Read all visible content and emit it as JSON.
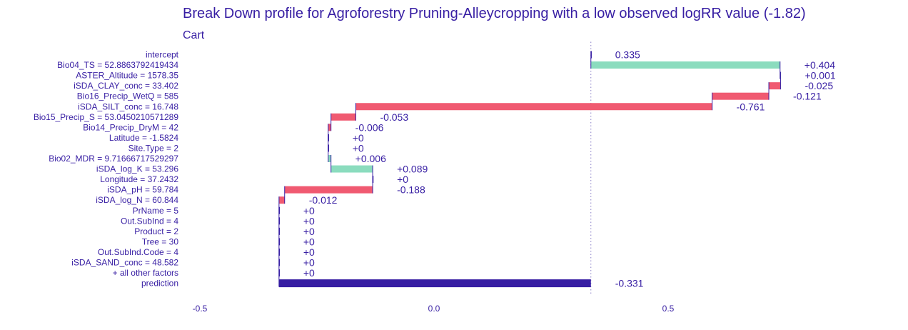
{
  "chart_data": {
    "type": "waterfall",
    "title": "Break Down profile for Agroforestry Pruning-Alleycropping with a low observed logRR value (-1.82)",
    "subtitle": "Cart",
    "xlim": [
      -0.5,
      0.85
    ],
    "xticks": [
      {
        "value": -0.5,
        "label": "-0.5"
      },
      {
        "value": 0.0,
        "label": "0.0"
      },
      {
        "value": 0.5,
        "label": "0.5"
      }
    ],
    "intercept_value": 0.335,
    "colors": {
      "positive": "#8bdcbe",
      "negative": "#f05a71",
      "prediction": "#371ea3",
      "text": "#371ea3",
      "connector": "#371ea3"
    },
    "rows": [
      {
        "variable": "intercept",
        "contribution": 0.335,
        "label": "0.335",
        "kind": "intercept"
      },
      {
        "variable": "Bio04_TS = 52.8863792419434",
        "contribution": 0.404,
        "label": "+0.404",
        "kind": "positive"
      },
      {
        "variable": "ASTER_Altitude = 1578.35",
        "contribution": 0.001,
        "label": "+0.001",
        "kind": "positive"
      },
      {
        "variable": "iSDA_CLAY_conc = 33.402",
        "contribution": -0.025,
        "label": "-0.025",
        "kind": "negative"
      },
      {
        "variable": "Bio16_Precip_WetQ = 585",
        "contribution": -0.121,
        "label": "-0.121",
        "kind": "negative"
      },
      {
        "variable": "iSDA_SILT_conc = 16.748",
        "contribution": -0.761,
        "label": "-0.761",
        "kind": "negative"
      },
      {
        "variable": "Bio15_Precip_S = 53.0450210571289",
        "contribution": -0.053,
        "label": "-0.053",
        "kind": "negative"
      },
      {
        "variable": "Bio14_Precip_DryM = 42",
        "contribution": -0.006,
        "label": "-0.006",
        "kind": "negative"
      },
      {
        "variable": "Latitude = -1.5824",
        "contribution": 0,
        "label": "+0",
        "kind": "zero"
      },
      {
        "variable": "Site.Type = 2",
        "contribution": 0,
        "label": "+0",
        "kind": "zero"
      },
      {
        "variable": "Bio02_MDR = 9.71666717529297",
        "contribution": 0.006,
        "label": "+0.006",
        "kind": "positive"
      },
      {
        "variable": "iSDA_log_K = 53.296",
        "contribution": 0.089,
        "label": "+0.089",
        "kind": "positive"
      },
      {
        "variable": "Longitude = 37.2432",
        "contribution": 0,
        "label": "+0",
        "kind": "zero"
      },
      {
        "variable": "iSDA_pH = 59.784",
        "contribution": -0.188,
        "label": "-0.188",
        "kind": "negative"
      },
      {
        "variable": "iSDA_log_N = 60.844",
        "contribution": -0.012,
        "label": "-0.012",
        "kind": "negative"
      },
      {
        "variable": "PrName = 5",
        "contribution": 0,
        "label": "+0",
        "kind": "zero"
      },
      {
        "variable": "Out.SubInd = 4",
        "contribution": 0,
        "label": "+0",
        "kind": "zero"
      },
      {
        "variable": "Product = 2",
        "contribution": 0,
        "label": "+0",
        "kind": "zero"
      },
      {
        "variable": "Tree = 30",
        "contribution": 0,
        "label": "+0",
        "kind": "zero"
      },
      {
        "variable": "Out.SubInd.Code = 4",
        "contribution": 0,
        "label": "+0",
        "kind": "zero"
      },
      {
        "variable": "iSDA_SAND_conc = 48.582",
        "contribution": 0,
        "label": "+0",
        "kind": "zero"
      },
      {
        "variable": "+ all other factors",
        "contribution": 0,
        "label": "+0",
        "kind": "zero"
      },
      {
        "variable": "prediction",
        "contribution": -0.331,
        "label": "-0.331",
        "kind": "prediction",
        "value": -0.331
      }
    ]
  }
}
